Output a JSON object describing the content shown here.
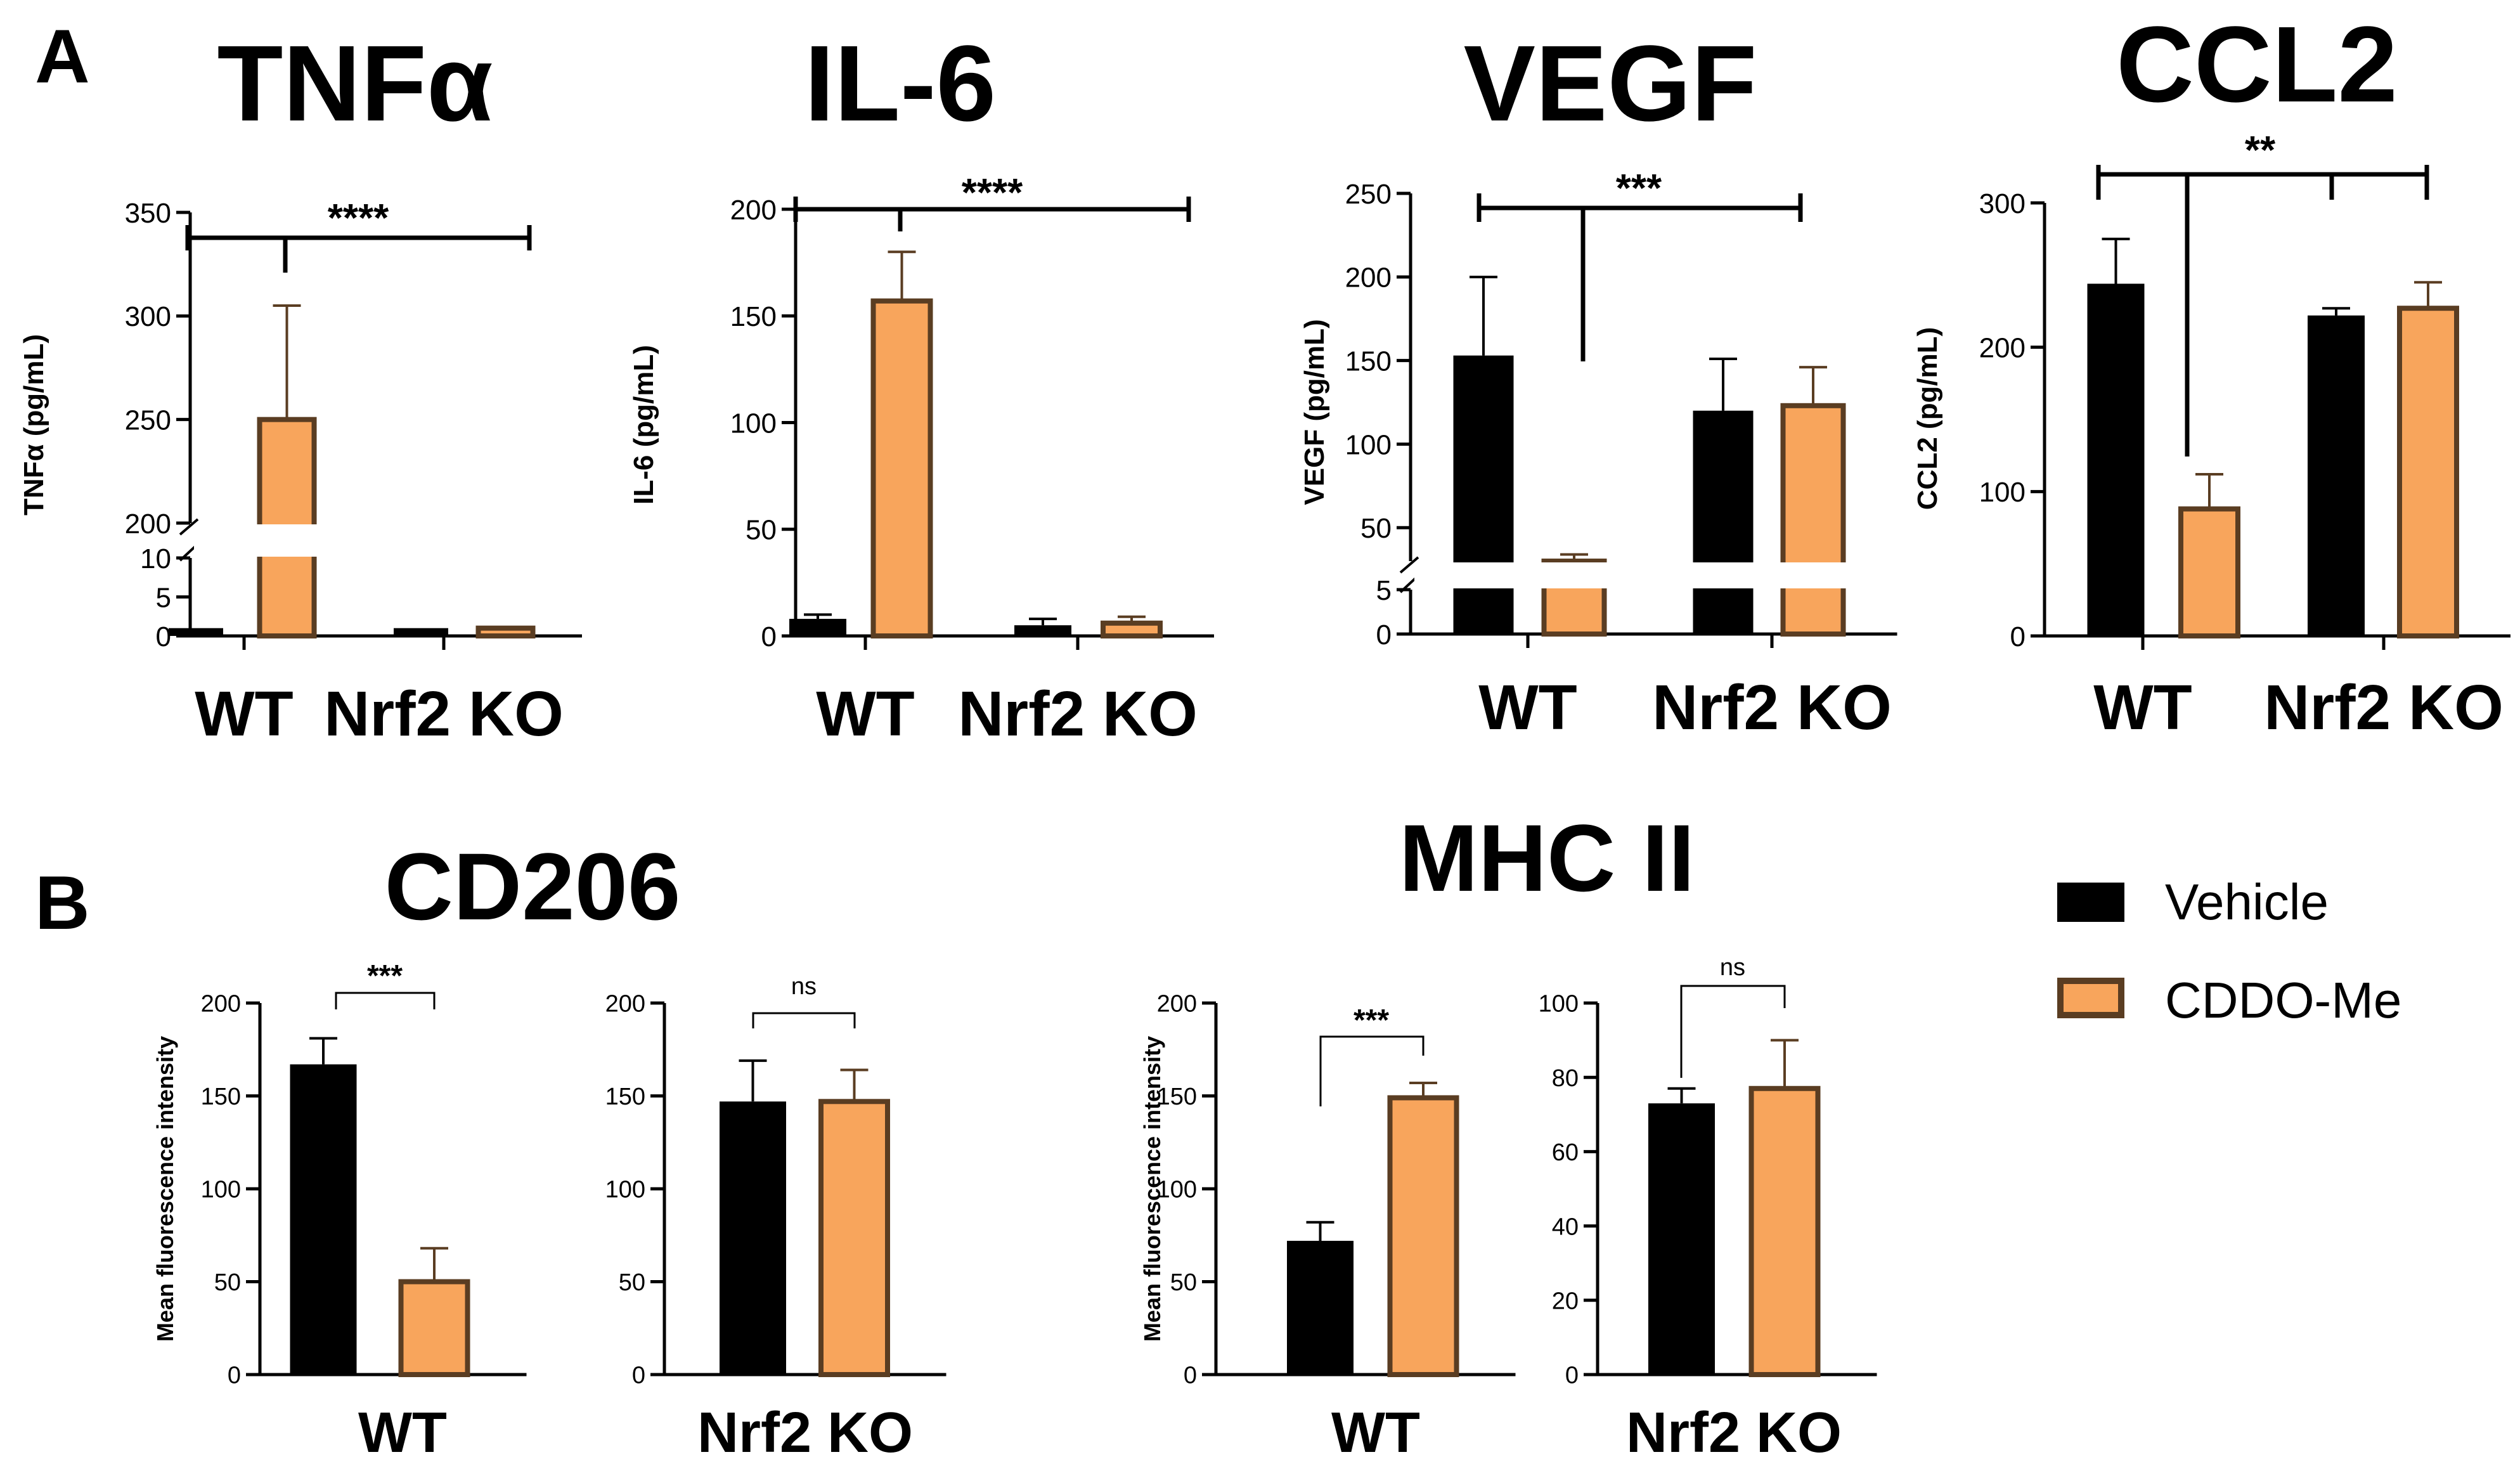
{
  "panel_labels": [
    "A",
    "B"
  ],
  "legend": {
    "items": [
      {
        "label": "Vehicle",
        "color": "#000000"
      },
      {
        "label": "CDDO-Me",
        "color": "#f8a55c"
      }
    ]
  },
  "colors": {
    "vehicle": "#000000",
    "cddo": "#f8a55c",
    "cddo_border": "#5a3d22"
  },
  "chart_data": [
    {
      "id": "tnfa",
      "panel": "A",
      "type": "bar",
      "title": "TNFα",
      "ylabel": "TNFα (pg/mL)",
      "categories": [
        "WT",
        "Nrf2 KO"
      ],
      "series": [
        {
          "name": "Vehicle",
          "values": [
            1,
            1
          ],
          "errors": [
            0,
            0
          ]
        },
        {
          "name": "CDDO-Me",
          "values": [
            250,
            1
          ],
          "errors": [
            55,
            0
          ]
        }
      ],
      "y_axis_segments": [
        {
          "range": [
            0,
            10
          ],
          "ticks": [
            0,
            5,
            10
          ]
        },
        {
          "range": [
            200,
            350
          ],
          "ticks": [
            200,
            250,
            300,
            350
          ]
        }
      ],
      "significance": [
        {
          "label": "****"
        }
      ]
    },
    {
      "id": "il6",
      "panel": "A",
      "type": "bar",
      "title": "IL-6",
      "ylabel": "IL-6 (pg/mL)",
      "categories": [
        "WT",
        "Nrf2 KO"
      ],
      "series": [
        {
          "name": "Vehicle",
          "values": [
            8,
            5
          ],
          "errors": [
            2,
            3
          ]
        },
        {
          "name": "CDDO-Me",
          "values": [
            157,
            6
          ],
          "errors": [
            23,
            3
          ]
        }
      ],
      "y_axis_segments": [
        {
          "range": [
            0,
            200
          ],
          "ticks": [
            0,
            50,
            100,
            150,
            200
          ]
        }
      ],
      "significance": [
        {
          "label": "****"
        }
      ]
    },
    {
      "id": "vegf",
      "panel": "A",
      "type": "bar",
      "title": "VEGF",
      "ylabel": "VEGF (pg/mL)",
      "categories": [
        "WT",
        "Nrf2 KO"
      ],
      "series": [
        {
          "name": "Vehicle",
          "values": [
            153,
            120
          ],
          "errors": [
            47,
            31
          ]
        },
        {
          "name": "CDDO-Me",
          "values": [
            17,
            123
          ],
          "errors": [
            17,
            23
          ]
        }
      ],
      "y_axis_segments": [
        {
          "range": [
            0,
            5
          ],
          "ticks": [
            0,
            5
          ]
        },
        {
          "range": [
            30,
            250
          ],
          "ticks": [
            50,
            100,
            150,
            200,
            250
          ]
        }
      ],
      "significance": [
        {
          "label": "***"
        }
      ]
    },
    {
      "id": "ccl2",
      "panel": "A",
      "type": "bar",
      "title": "CCL2",
      "ylabel": "CCL2 (pg/mL)",
      "categories": [
        "WT",
        "Nrf2 KO"
      ],
      "series": [
        {
          "name": "Vehicle",
          "values": [
            244,
            222
          ],
          "errors": [
            31,
            5
          ]
        },
        {
          "name": "CDDO-Me",
          "values": [
            88,
            227
          ],
          "errors": [
            24,
            18
          ]
        }
      ],
      "y_axis_segments": [
        {
          "range": [
            0,
            300
          ],
          "ticks": [
            0,
            100,
            200,
            300
          ]
        }
      ],
      "significance": [
        {
          "label": "**"
        }
      ]
    },
    {
      "id": "cd206-wt",
      "panel": "B",
      "type": "bar",
      "title": "CD206",
      "ylabel": "Mean fluorescence intensity",
      "xlabel": "WT",
      "series": [
        {
          "name": "Vehicle",
          "values": [
            167
          ],
          "errors": [
            14
          ]
        },
        {
          "name": "CDDO-Me",
          "values": [
            50
          ],
          "errors": [
            18
          ]
        }
      ],
      "y_axis_segments": [
        {
          "range": [
            0,
            200
          ],
          "ticks": [
            0,
            50,
            100,
            150,
            200
          ]
        }
      ],
      "significance": [
        {
          "label": "***"
        }
      ]
    },
    {
      "id": "cd206-ko",
      "panel": "B",
      "type": "bar",
      "ylabel": "",
      "xlabel": "Nrf2 KO",
      "series": [
        {
          "name": "Vehicle",
          "values": [
            147
          ],
          "errors": [
            22
          ]
        },
        {
          "name": "CDDO-Me",
          "values": [
            147
          ],
          "errors": [
            17
          ]
        }
      ],
      "y_axis_segments": [
        {
          "range": [
            0,
            200
          ],
          "ticks": [
            0,
            50,
            100,
            150,
            200
          ]
        }
      ],
      "significance": [
        {
          "label": "ns"
        }
      ]
    },
    {
      "id": "mhc-wt",
      "panel": "B",
      "type": "bar",
      "title": "MHC II",
      "ylabel": "Mean fluorescence intensity",
      "xlabel": "WT",
      "series": [
        {
          "name": "Vehicle",
          "values": [
            72
          ],
          "errors": [
            10
          ]
        },
        {
          "name": "CDDO-Me",
          "values": [
            149
          ],
          "errors": [
            8
          ]
        }
      ],
      "y_axis_segments": [
        {
          "range": [
            0,
            200
          ],
          "ticks": [
            0,
            50,
            100,
            150,
            200
          ]
        }
      ],
      "significance": [
        {
          "label": "***"
        }
      ]
    },
    {
      "id": "mhc-ko",
      "panel": "B",
      "type": "bar",
      "ylabel": "",
      "xlabel": "Nrf2 KO",
      "series": [
        {
          "name": "Vehicle",
          "values": [
            73
          ],
          "errors": [
            4
          ]
        },
        {
          "name": "CDDO-Me",
          "values": [
            77
          ],
          "errors": [
            13
          ]
        }
      ],
      "y_axis_segments": [
        {
          "range": [
            0,
            100
          ],
          "ticks": [
            0,
            20,
            40,
            60,
            80,
            100
          ]
        }
      ],
      "significance": [
        {
          "label": "ns"
        }
      ]
    }
  ]
}
